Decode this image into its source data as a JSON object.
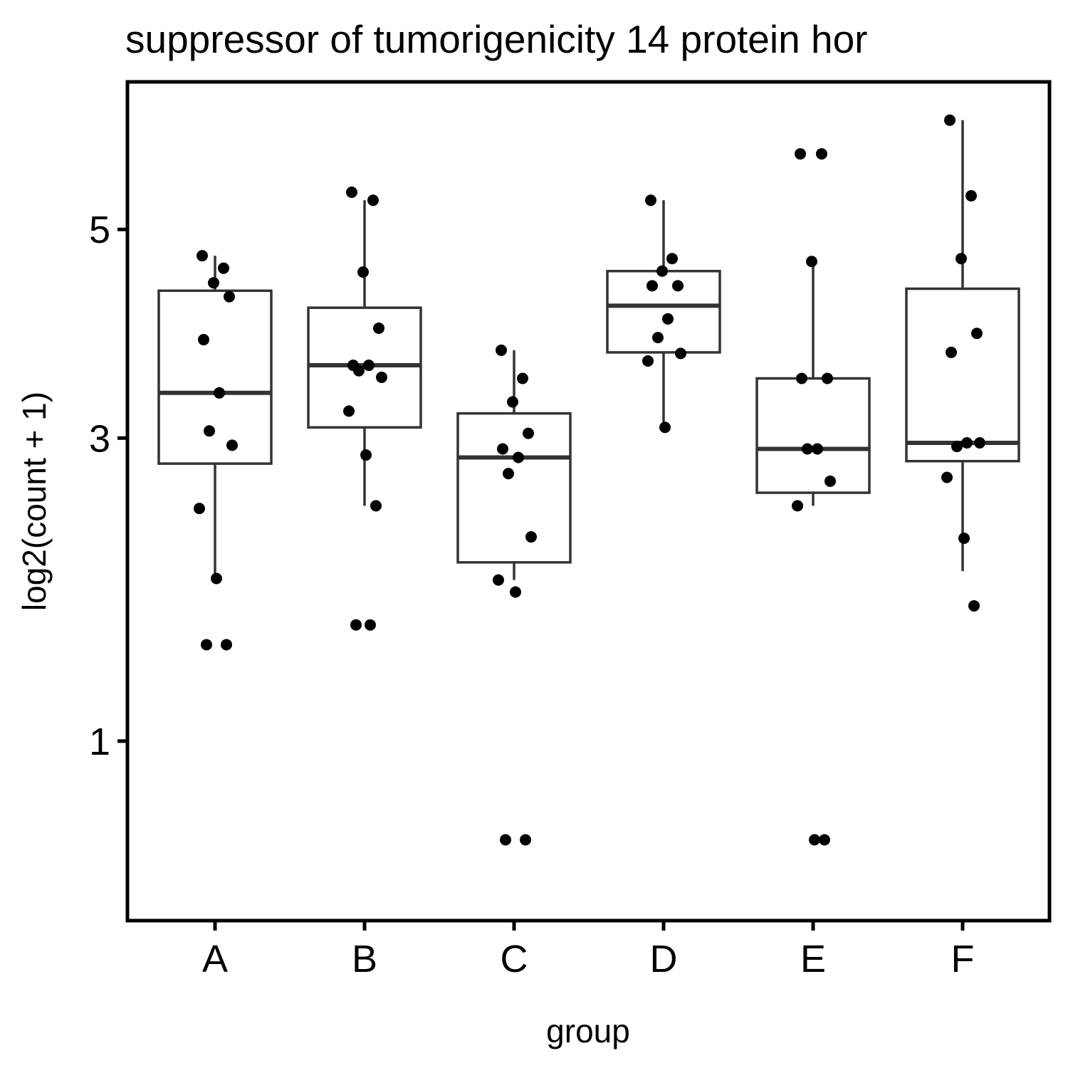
{
  "chart_data": {
    "type": "boxplot",
    "title": "suppressor of tumorigenicity 14 protein hor",
    "xlabel": "group",
    "ylabel": "log2(count + 1)",
    "y_scale": "sqrt",
    "ylim": [
      0.43,
      6.3
    ],
    "y_ticks": [
      1,
      3,
      5
    ],
    "categories": [
      "A",
      "B",
      "C",
      "D",
      "E",
      "F"
    ],
    "grid": false,
    "colors": {
      "box": "#333333",
      "point": "#000000",
      "frame": "#000000"
    },
    "boxes": [
      {
        "group": "A",
        "q1": 2.79,
        "median": 3.39,
        "q3": 4.36,
        "whisker_low": 1.95,
        "whisker_high": 4.72
      },
      {
        "group": "B",
        "q1": 3.09,
        "median": 3.64,
        "q3": 4.19,
        "whisker_low": 2.46,
        "whisker_high": 5.32
      },
      {
        "group": "C",
        "q1": 2.05,
        "median": 2.84,
        "q3": 3.21,
        "whisker_low": 1.93,
        "whisker_high": 3.78
      },
      {
        "group": "D",
        "q1": 3.76,
        "median": 4.21,
        "q3": 4.56,
        "whisker_low": 3.09,
        "whisker_high": 5.32
      },
      {
        "group": "E",
        "q1": 2.56,
        "median": 2.91,
        "q3": 3.52,
        "whisker_low": 2.46,
        "whisker_high": 4.66
      },
      {
        "group": "F",
        "q1": 2.81,
        "median": 2.96,
        "q3": 4.38,
        "whisker_low": 1.99,
        "whisker_high": 6.25
      }
    ],
    "points": [
      {
        "group": "A",
        "values": [
          4.72,
          4.59,
          4.44,
          4.3,
          3.88,
          3.39,
          3.06,
          2.94,
          2.44,
          1.94,
          1.52,
          1.52
        ]
      },
      {
        "group": "B",
        "values": [
          5.41,
          5.32,
          4.55,
          3.99,
          3.64,
          3.64,
          3.59,
          3.53,
          3.23,
          2.86,
          2.46,
          1.64,
          1.64
        ]
      },
      {
        "group": "C",
        "values": [
          3.78,
          3.52,
          3.31,
          3.04,
          2.91,
          2.84,
          2.71,
          2.23,
          1.93,
          1.85,
          0.58,
          0.58
        ]
      },
      {
        "group": "D",
        "values": [
          5.32,
          4.69,
          4.56,
          4.41,
          4.41,
          4.08,
          3.9,
          3.75,
          3.68,
          3.09
        ]
      },
      {
        "group": "E",
        "values": [
          5.85,
          5.85,
          4.66,
          3.52,
          3.52,
          2.91,
          2.91,
          2.65,
          2.46,
          0.58,
          0.58
        ]
      },
      {
        "group": "F",
        "values": [
          6.25,
          5.37,
          4.69,
          3.94,
          3.76,
          2.96,
          2.93,
          2.96,
          2.68,
          2.22,
          1.76
        ]
      }
    ]
  }
}
